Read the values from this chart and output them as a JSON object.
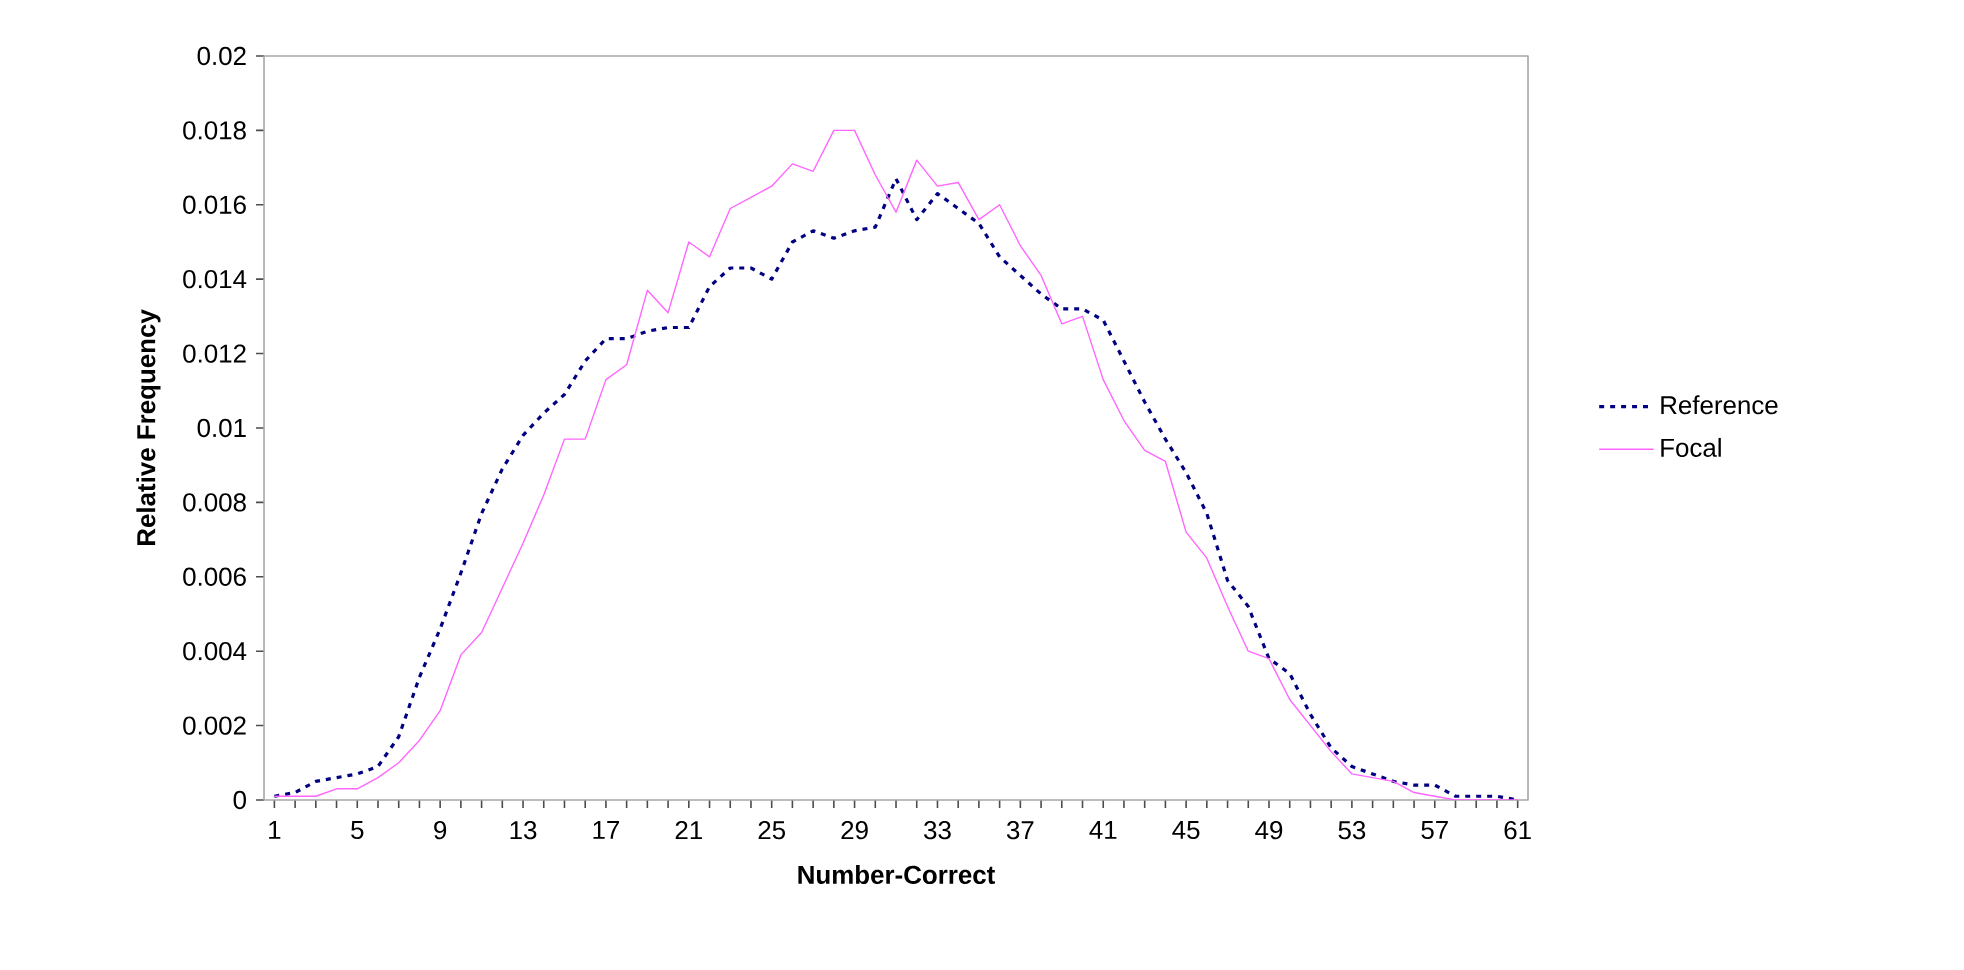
{
  "chart_data": {
    "type": "line",
    "xlabel": "Number-Correct",
    "ylabel": "Relative Frequency",
    "categories": [
      "1",
      null,
      null,
      null,
      "5",
      null,
      null,
      null,
      "9",
      null,
      null,
      null,
      "13",
      null,
      null,
      null,
      "17",
      null,
      null,
      null,
      "21",
      null,
      null,
      null,
      "25",
      null,
      null,
      null,
      "29",
      null,
      null,
      null,
      "33",
      null,
      null,
      null,
      "37",
      null,
      null,
      null,
      "41",
      null,
      null,
      null,
      "45",
      null,
      null,
      null,
      "49",
      null,
      null,
      null,
      "53",
      null,
      null,
      null,
      "57",
      null,
      null,
      null,
      "61"
    ],
    "series": [
      {
        "name": "Reference",
        "color": "#000080",
        "line_style": "dashed",
        "values": [
          0.0001,
          0.0002,
          0.0005,
          0.0006,
          0.0007,
          0.0009,
          0.0017,
          0.0033,
          0.0046,
          0.0061,
          0.0077,
          0.0089,
          0.0098,
          0.0104,
          0.0109,
          0.0118,
          0.0124,
          0.0124,
          0.0126,
          0.0127,
          0.0127,
          0.0138,
          0.0143,
          0.0143,
          0.014,
          0.015,
          0.0153,
          0.0151,
          0.0153,
          0.0154,
          0.0167,
          0.0156,
          0.0163,
          0.0159,
          0.0155,
          0.0146,
          0.0141,
          0.0136,
          0.0132,
          0.0132,
          0.0129,
          0.0118,
          0.0107,
          0.0097,
          0.0088,
          0.0077,
          0.0059,
          0.0052,
          0.0038,
          0.0034,
          0.0023,
          0.0014,
          0.0009,
          0.0007,
          0.0005,
          0.0004,
          0.0004,
          0.0001,
          0.0001,
          0.0001,
          0
        ]
      },
      {
        "name": "Focal",
        "color": "#ff66ff",
        "line_style": "solid",
        "values": [
          0.0001,
          0.0001,
          0.0001,
          0.0003,
          0.0003,
          0.0006,
          0.001,
          0.0016,
          0.0024,
          0.0039,
          0.0045,
          0.0057,
          0.0069,
          0.0082,
          0.0097,
          0.0097,
          0.0113,
          0.0117,
          0.0137,
          0.0131,
          0.015,
          0.0146,
          0.0159,
          0.0162,
          0.0165,
          0.0171,
          0.0169,
          0.018,
          0.018,
          0.0168,
          0.0158,
          0.0172,
          0.0165,
          0.0166,
          0.0156,
          0.016,
          0.0149,
          0.0141,
          0.0128,
          0.013,
          0.0113,
          0.0102,
          0.0094,
          0.0091,
          0.0072,
          0.0065,
          0.0052,
          0.004,
          0.0038,
          0.0027,
          0.002,
          0.0013,
          0.0007,
          0.0006,
          0.0005,
          0.0002,
          0.0001,
          0,
          0,
          0,
          0
        ]
      }
    ],
    "ylim": [
      0,
      0.02
    ],
    "yticks": [
      0,
      0.002,
      0.004,
      0.006,
      0.008,
      0.01,
      0.012,
      0.014,
      0.016,
      0.018,
      0.02
    ],
    "grid": false,
    "legend": "right",
    "marker": "none"
  }
}
